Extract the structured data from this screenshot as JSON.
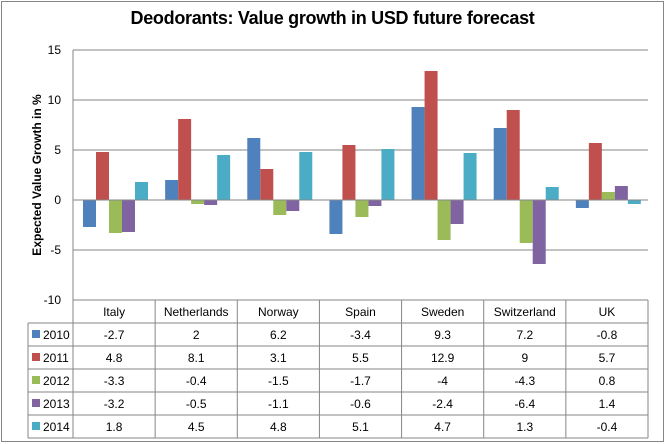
{
  "chart_data": {
    "type": "bar",
    "title": "Deodorants: Value growth in USD future forecast",
    "xlabel": "",
    "ylabel": "Expected Value Growth in %",
    "ylim": [
      -10,
      15
    ],
    "yticks": [
      -10,
      -5,
      0,
      5,
      10,
      15
    ],
    "grid": true,
    "legend_placement": "data-table-left",
    "categories": [
      "Italy",
      "Netherlands",
      "Norway",
      "Spain",
      "Sweden",
      "Switzerland",
      "UK"
    ],
    "series": [
      {
        "name": "2010",
        "color": "#4F81BD",
        "values": [
          -2.7,
          2,
          6.2,
          -3.4,
          9.3,
          7.2,
          -0.8
        ]
      },
      {
        "name": "2011",
        "color": "#C0504D",
        "values": [
          4.8,
          8.1,
          3.1,
          5.5,
          12.9,
          9,
          5.7
        ]
      },
      {
        "name": "2012",
        "color": "#9BBB59",
        "values": [
          -3.3,
          -0.4,
          -1.5,
          -1.7,
          -4,
          -4.3,
          0.8
        ]
      },
      {
        "name": "2013",
        "color": "#8064A2",
        "values": [
          -3.2,
          -0.5,
          -1.1,
          -0.6,
          -2.4,
          -6.4,
          1.4
        ]
      },
      {
        "name": "2014",
        "color": "#4BACC6",
        "values": [
          1.8,
          4.5,
          4.8,
          5.1,
          4.7,
          1.3,
          -0.4
        ]
      }
    ]
  }
}
